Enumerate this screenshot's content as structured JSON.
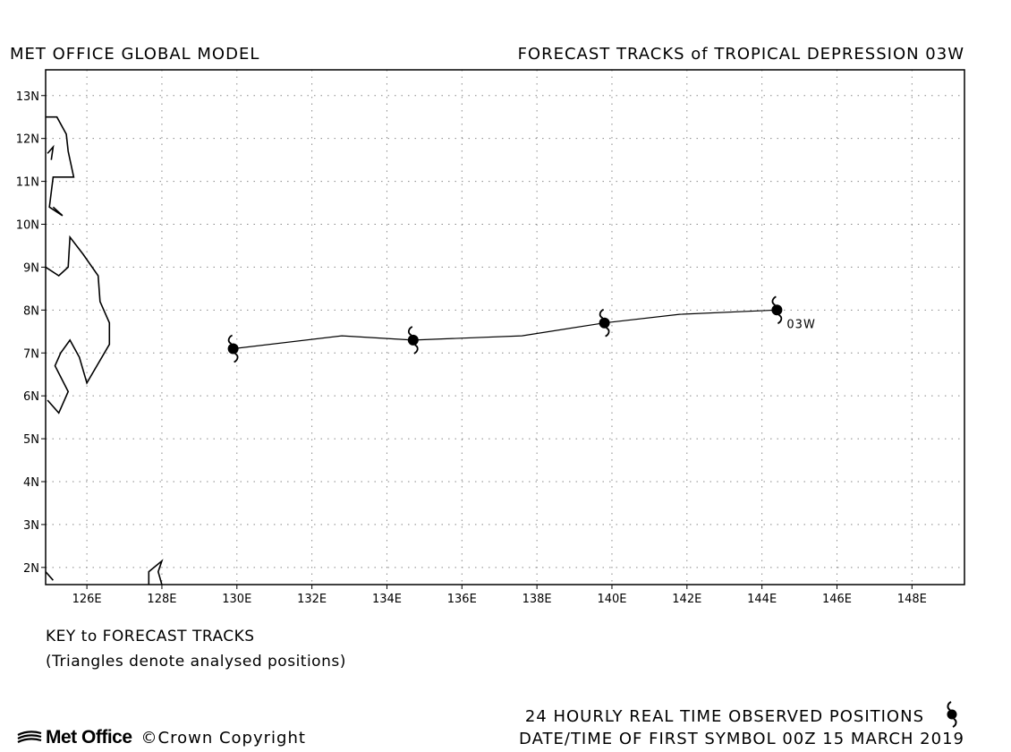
{
  "header": {
    "left": "MET OFFICE GLOBAL MODEL",
    "right": "FORECAST TRACKS of TROPICAL DEPRESSION 03W"
  },
  "map": {
    "lon_range": [
      124.9,
      149.4
    ],
    "lat_range": [
      1.6,
      13.6
    ],
    "lon_ticks": [
      "126E",
      "128E",
      "130E",
      "132E",
      "134E",
      "136E",
      "138E",
      "140E",
      "142E",
      "144E",
      "146E",
      "148E"
    ],
    "lat_ticks": [
      "2N",
      "3N",
      "4N",
      "5N",
      "6N",
      "7N",
      "8N",
      "9N",
      "10N",
      "11N",
      "12N",
      "13N"
    ],
    "grid": "dotted",
    "storm_label": "03W",
    "track": [
      {
        "lon": 129.9,
        "lat": 7.1
      },
      {
        "lon": 132.8,
        "lat": 7.4
      },
      {
        "lon": 134.7,
        "lat": 7.3
      },
      {
        "lon": 137.6,
        "lat": 7.4
      },
      {
        "lon": 139.8,
        "lat": 7.7
      },
      {
        "lon": 141.8,
        "lat": 7.9
      },
      {
        "lon": 144.4,
        "lat": 8.0
      }
    ],
    "observed_positions": [
      {
        "lon": 129.9,
        "lat": 7.1
      },
      {
        "lon": 134.7,
        "lat": 7.3
      },
      {
        "lon": 139.8,
        "lat": 7.7
      },
      {
        "lon": 144.4,
        "lat": 8.0
      }
    ],
    "coastlines": [
      [
        [
          124.9,
          12.5
        ],
        [
          125.2,
          12.5
        ],
        [
          125.45,
          12.1
        ],
        [
          125.5,
          11.7
        ],
        [
          125.65,
          11.1
        ],
        [
          125.1,
          11.1
        ],
        [
          125.0,
          10.4
        ],
        [
          125.35,
          10.2
        ],
        [
          125.1,
          10.4
        ]
      ],
      [
        [
          124.95,
          11.65
        ],
        [
          125.1,
          11.8
        ],
        [
          125.05,
          11.5
        ]
      ],
      [
        [
          124.9,
          9.0
        ],
        [
          125.25,
          8.8
        ],
        [
          125.5,
          9.0
        ],
        [
          125.55,
          9.7
        ],
        [
          125.9,
          9.3
        ],
        [
          126.3,
          8.8
        ],
        [
          126.35,
          8.2
        ],
        [
          126.6,
          7.7
        ],
        [
          126.6,
          7.2
        ],
        [
          126.2,
          6.6
        ],
        [
          126.0,
          6.3
        ],
        [
          125.8,
          6.9
        ],
        [
          125.55,
          7.3
        ],
        [
          125.3,
          7.0
        ],
        [
          125.15,
          6.7
        ],
        [
          125.5,
          6.1
        ],
        [
          125.25,
          5.6
        ],
        [
          124.95,
          5.9
        ]
      ],
      [
        [
          127.65,
          1.6
        ],
        [
          127.65,
          1.9
        ],
        [
          128.0,
          2.15
        ],
        [
          127.9,
          1.9
        ],
        [
          128.0,
          1.6
        ]
      ],
      [
        [
          124.9,
          1.9
        ],
        [
          125.1,
          1.7
        ]
      ]
    ]
  },
  "key": {
    "title": "KEY to FORECAST TRACKS",
    "note": "(Triangles denote analysed positions)"
  },
  "footer": {
    "observed_label": "24 HOURLY REAL TIME OBSERVED POSITIONS",
    "datetime_label": "DATE/TIME OF FIRST SYMBOL 00Z 15 MARCH 2019",
    "logo_text": "Met Office",
    "copyright": "©Crown Copyright"
  }
}
